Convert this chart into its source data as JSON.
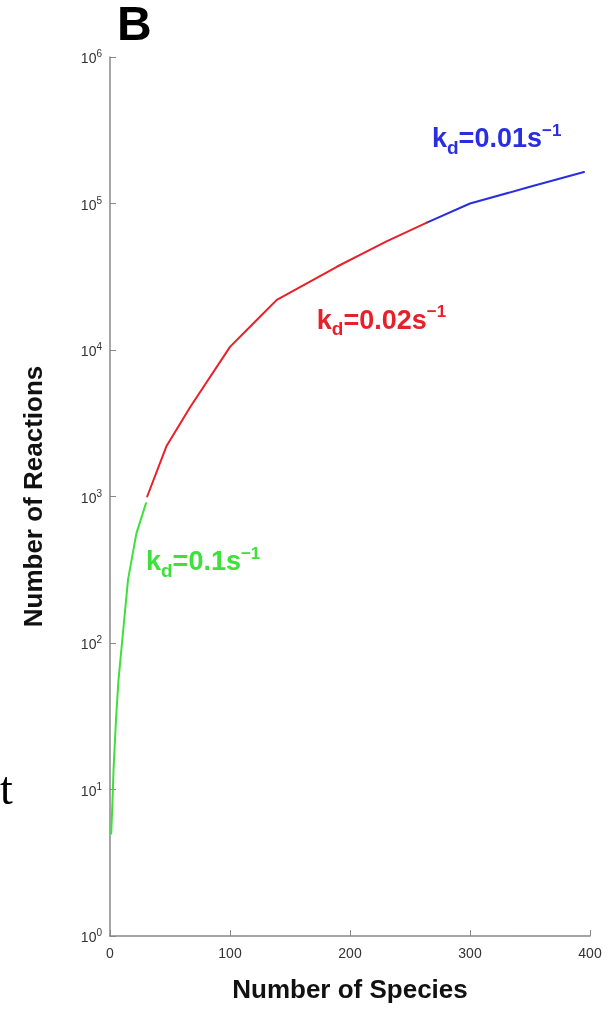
{
  "chart_data": {
    "type": "line",
    "title": "B",
    "xlabel": "Number of Species",
    "ylabel": "Number of Reactions",
    "log": "y",
    "xlim": [
      0,
      400
    ],
    "xticks": [
      0,
      100,
      200,
      300,
      400
    ],
    "ylim": [
      1,
      1000000
    ],
    "yticks": [
      {
        "value": 1,
        "label": "10$^{0}$"
      },
      {
        "value": 10,
        "label": "10$^{1}$"
      },
      {
        "value": 100,
        "label": "10$^{2}$"
      },
      {
        "value": 1000,
        "label": "10$^{3}$"
      },
      {
        "value": 10000,
        "label": "10$^{4}$"
      },
      {
        "value": 100000,
        "label": "10$^{5}$"
      },
      {
        "value": 1000000,
        "label": "10$^{6}$"
      }
    ],
    "grid": false,
    "legend": false,
    "marker": "none",
    "line_style": "solid",
    "annotations": [
      "t"
    ],
    "series": [
      {
        "name": "k$_{d}$=0.01s$^{−1}$",
        "color": "#2a2ee0",
        "x": [
          264,
          300,
          350,
          395
        ],
        "values": [
          74000,
          100000,
          130000,
          164000
        ]
      },
      {
        "name": "k$_{d}$=0.02s$^{−1}$",
        "color": "#e8202a",
        "x": [
          31,
          47,
          67,
          100,
          139,
          189,
          230,
          264
        ],
        "values": [
          1000,
          2200,
          4100,
          10500,
          22000,
          37000,
          55000,
          74000
        ]
      },
      {
        "name": "k$_{d}$=0.1s$^{−1}$",
        "color": "#3ee03a",
        "x": [
          1,
          2,
          3,
          5,
          7,
          10,
          15,
          22,
          30
        ],
        "values": [
          5,
          8,
          14,
          30,
          55,
          100,
          270,
          560,
          900
        ]
      }
    ]
  }
}
